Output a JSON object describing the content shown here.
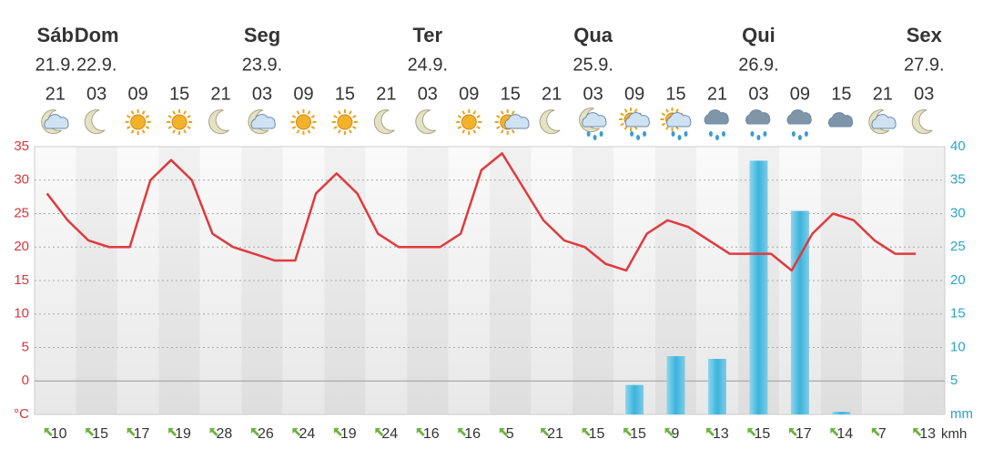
{
  "chart_data": {
    "type": "combo",
    "categories": [
      "21",
      "03",
      "09",
      "15",
      "21",
      "03",
      "09",
      "15",
      "21",
      "03",
      "09",
      "15",
      "21",
      "03",
      "09",
      "15",
      "21",
      "03",
      "09",
      "15",
      "21",
      "03"
    ],
    "days": [
      "Sáb",
      "Dom",
      null,
      null,
      null,
      "Seg",
      null,
      null,
      null,
      "Ter",
      null,
      null,
      null,
      "Qua",
      null,
      null,
      null,
      "Qui",
      null,
      null,
      null,
      "Sex"
    ],
    "dates": [
      "21.9.",
      "22.9.",
      null,
      null,
      null,
      "23.9.",
      null,
      null,
      null,
      "24.9.",
      null,
      null,
      null,
      "25.9.",
      null,
      null,
      null,
      "26.9.",
      null,
      null,
      null,
      "27.9."
    ],
    "icons": [
      "cloud-night",
      "moon",
      "sun",
      "sun",
      "moon",
      "cloud-night",
      "sun",
      "sun",
      "moon",
      "moon",
      "sun",
      "sun-cloud",
      "moon",
      "rain-night",
      "rain-sun",
      "rain-sun",
      "rain",
      "rain",
      "rain",
      "cloud",
      "cloud-night",
      "moon"
    ],
    "temperature": {
      "color": "#e03a3e",
      "values": [
        28,
        24,
        21,
        20,
        20,
        30,
        33,
        30,
        22,
        20,
        19,
        18,
        18,
        28,
        31,
        28,
        22,
        20,
        20,
        20,
        22,
        31.5,
        34,
        29,
        24,
        21,
        20,
        17.5,
        16.5,
        22,
        24,
        23,
        21,
        19,
        19,
        19,
        16.5,
        22,
        25,
        24,
        21,
        19,
        19
      ]
    },
    "precipitation": {
      "color": "#3ab4dc",
      "axis": "y2",
      "values": [
        0,
        0,
        0,
        0,
        0,
        0,
        0,
        0,
        0,
        0,
        0,
        0,
        0,
        0,
        4.4,
        8.7,
        8.3,
        37.9,
        30.4,
        0.4,
        0,
        0
      ]
    },
    "wind": {
      "color": "#6cb33f",
      "unit": "kmh",
      "values": [
        10,
        15,
        17,
        19,
        28,
        26,
        24,
        19,
        24,
        16,
        16,
        5,
        21,
        15,
        15,
        9,
        13,
        15,
        17,
        14,
        7,
        13
      ]
    },
    "ylim": [
      -5,
      35
    ],
    "yticks": [
      {
        "value": -5,
        "label": "°C"
      },
      0,
      5,
      10,
      15,
      20,
      25,
      30,
      35
    ],
    "ycolor": "#d7353a",
    "y2lim": [
      0,
      40
    ],
    "y2ticks": [
      {
        "value": 0,
        "label": "mm"
      },
      5,
      10,
      15,
      20,
      25,
      30,
      35,
      40
    ],
    "y2color": "#2aa3c9",
    "grid": true
  }
}
